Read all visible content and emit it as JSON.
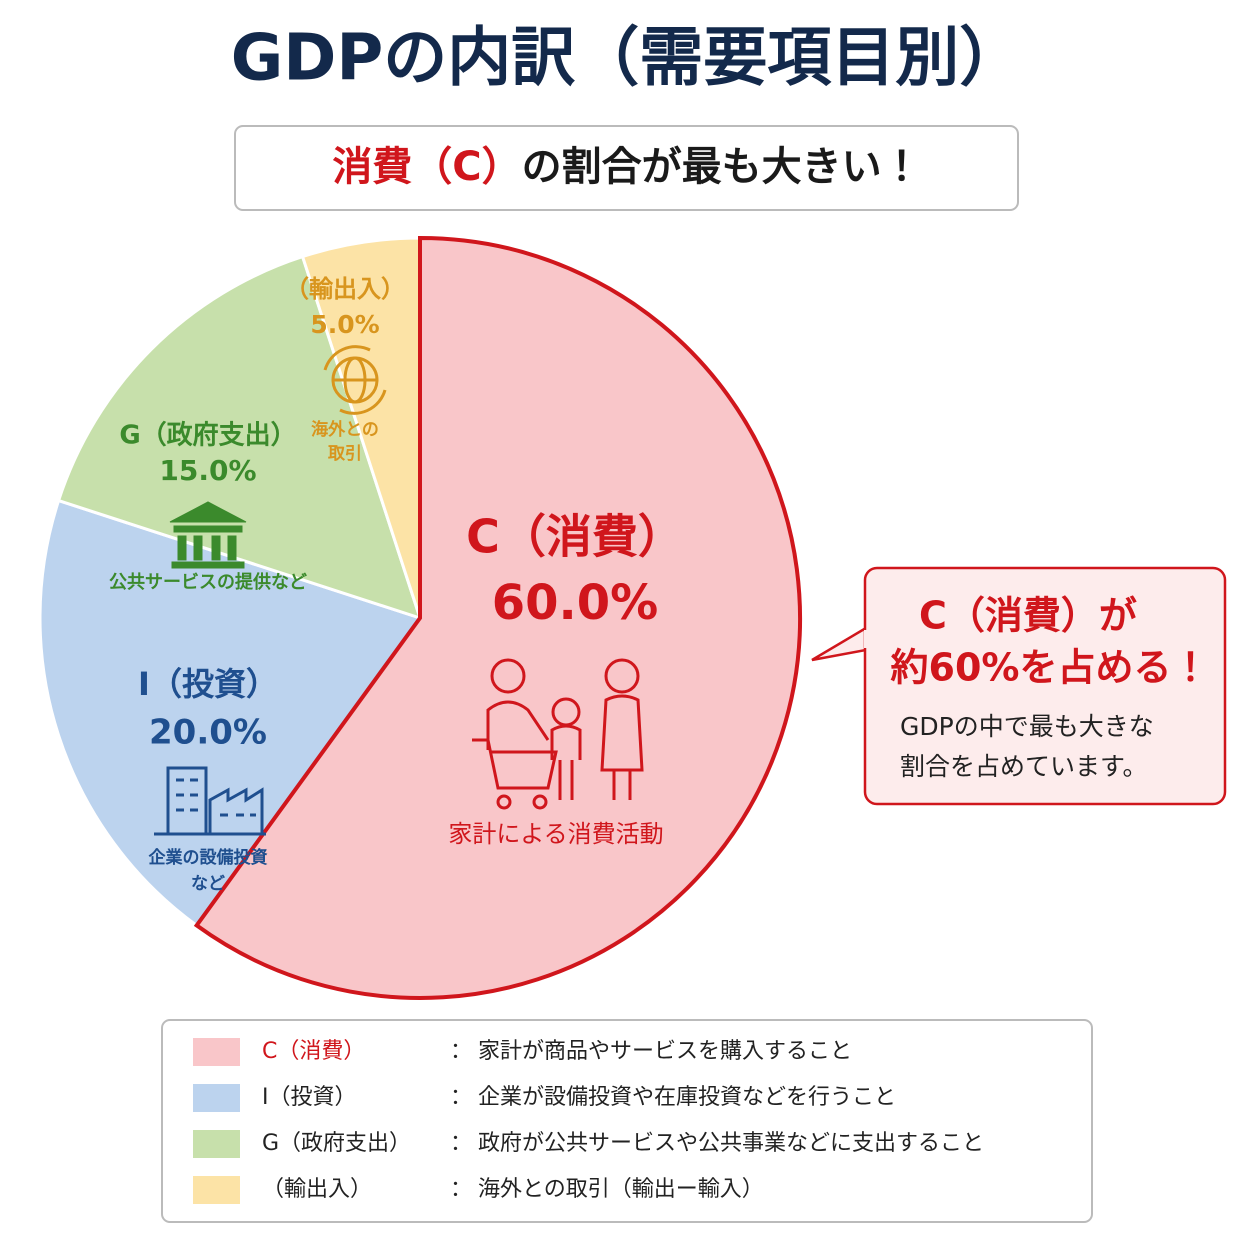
{
  "chart_data": {
    "type": "pie",
    "title": "GDPの内訳（需要項目別）",
    "subtitle": {
      "highlight": "消費（C）",
      "text": "の割合が最も大きい！"
    },
    "categories": [
      "C（消費）",
      "I（投資）",
      "G（政府支出）",
      "（輸出入）"
    ],
    "values": [
      60,
      20,
      15,
      5
    ],
    "value_labels": [
      "60.0%",
      "20.0%",
      "15.0%",
      "5.0%"
    ],
    "colors": [
      "#f9c6c9",
      "#bcd3ee",
      "#c7e0ab",
      "#fce3a6"
    ],
    "label_colors": [
      "#d0161c",
      "#1f4f8f",
      "#3b8a2c",
      "#d8951e"
    ],
    "descriptions": [
      [
        "家計による消費活動"
      ],
      [
        "企業の設備投資",
        "など"
      ],
      [
        "公共サービスの提供など"
      ],
      [
        "海外との",
        "取引"
      ]
    ],
    "legend_descriptions": [
      "家計が商品やサービスを購入すること",
      "企業が設備投資や在庫投資などを行うこと",
      "政府が公共サービスや公共事業などに支出すること",
      "海外との取引（輸出ー輸入）"
    ],
    "annotation": {
      "heading": [
        "C（消費）が",
        "約60%を占める！"
      ],
      "body": [
        "GDPの中で最も大きな",
        "割合を占めています。"
      ]
    }
  }
}
